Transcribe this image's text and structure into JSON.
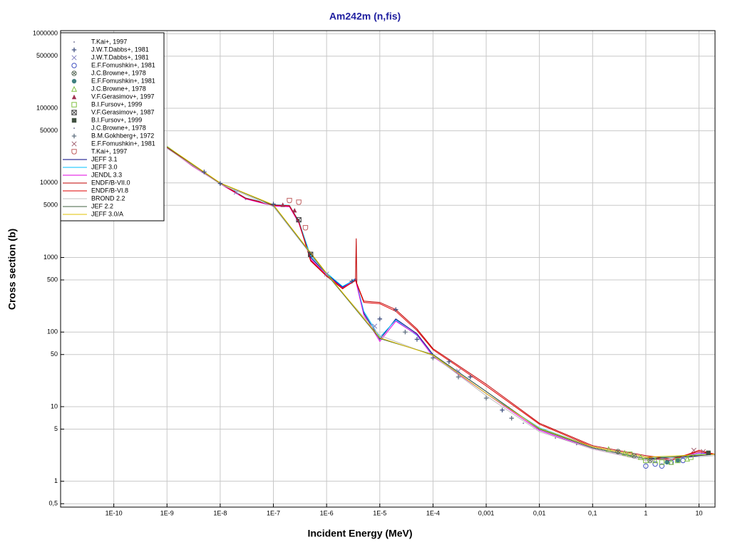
{
  "chart_data": {
    "type": "scatter",
    "title": "Am242m (n,fis)",
    "x_label": "Incident Energy (MeV)",
    "y_label": "Cross section (b)",
    "log_x": true,
    "log_y": true,
    "grid": true,
    "legend": "upper left",
    "xlim": [
      1e-11,
      20
    ],
    "ylim": [
      0.45,
      1100000
    ],
    "xticks": [
      {
        "value": 1e-10,
        "label": "1E-10"
      },
      {
        "value": 1e-09,
        "label": "1E-9"
      },
      {
        "value": 1e-08,
        "label": "1E-8"
      },
      {
        "value": 1e-07,
        "label": "1E-7"
      },
      {
        "value": 1e-06,
        "label": "1E-6"
      },
      {
        "value": 1e-05,
        "label": "1E-5"
      },
      {
        "value": 0.0001,
        "label": "1E-4"
      },
      {
        "value": 0.001,
        "label": "0,001"
      },
      {
        "value": 0.01,
        "label": "0,01"
      },
      {
        "value": 0.1,
        "label": "0,1"
      },
      1,
      10
    ],
    "yticks": [
      1000000,
      500000,
      100000,
      50000,
      10000,
      5000,
      1000,
      500,
      100,
      50,
      10,
      5,
      1,
      {
        "value": 0.5,
        "label": "0,5"
      }
    ],
    "series": [
      {
        "name": "T.Kai+, 1997",
        "marker": "dot",
        "color": "#8080a0",
        "x": [
          1e-08,
          3e-08,
          1e-07
        ],
        "values": [
          9500,
          6000,
          4900
        ]
      },
      {
        "name": "J.W.T.Dabbs+, 1981",
        "marker": "plus",
        "color": "#405080",
        "x": [
          5e-09,
          1e-08,
          1e-07,
          3e-06,
          1e-05,
          2e-05,
          5e-05,
          0.0002,
          0.0005,
          0.002
        ],
        "values": [
          14000,
          9800,
          5200,
          480,
          150,
          200,
          80,
          40,
          25,
          9
        ]
      },
      {
        "name": "J.W.T.Dabbs+, 1981",
        "marker": "cross",
        "color": "#8080c0",
        "x": [
          2e-08,
          1e-06,
          8e-06,
          0.0003
        ],
        "values": [
          7500,
          600,
          120,
          30
        ]
      },
      {
        "name": "E.F.Fomushkin+, 1981",
        "marker": "circle",
        "color": "#4050c0",
        "x": [
          1,
          1.5,
          2,
          3,
          5
        ],
        "values": [
          1.6,
          1.7,
          1.6,
          1.8,
          1.9
        ]
      },
      {
        "name": "J.C.Browne+, 1978",
        "marker": "circle-x",
        "color": "#607060",
        "x": [
          0.3,
          0.6,
          1.2
        ],
        "values": [
          2.5,
          2.2,
          1.9
        ]
      },
      {
        "name": "E.F.Fomushkin+, 1981",
        "marker": "hexagon",
        "color": "#408080",
        "x": [
          2.5,
          4
        ],
        "values": [
          1.8,
          1.9
        ]
      },
      {
        "name": "J.C.Browne+, 1978",
        "marker": "triangle",
        "color": "#80c040",
        "x": [
          0.2,
          0.4,
          0.8,
          1.5,
          3,
          6
        ],
        "values": [
          2.7,
          2.4,
          2.1,
          1.9,
          1.8,
          2.0
        ]
      },
      {
        "name": "V.F.Gerasimov+, 1997",
        "marker": "triangle-filled",
        "color": "#a03050",
        "x": [
          1.5e-07,
          2.5e-07
        ],
        "values": [
          5100,
          4300
        ]
      },
      {
        "name": "B.I.Fursov+, 1999",
        "marker": "square",
        "color": "#80c040",
        "x": [
          0.5,
          1,
          2,
          4,
          7
        ],
        "values": [
          2.3,
          1.9,
          1.8,
          1.9,
          2.1
        ]
      },
      {
        "name": "V.F.Gerasimov+, 1987",
        "marker": "square-x",
        "color": "#404040",
        "x": [
          3e-07,
          5e-07
        ],
        "values": [
          3200,
          1100
        ]
      },
      {
        "name": "B.I.Fursov+, 1999",
        "marker": "square-filled",
        "color": "#405040",
        "x": [
          15
        ],
        "values": [
          2.4
        ]
      },
      {
        "name": "J.C.Browne+, 1978",
        "marker": "dot",
        "color": "#8080a0",
        "x": [
          0.005,
          0.02,
          0.05
        ],
        "values": [
          6,
          3.8,
          3.1
        ]
      },
      {
        "name": "B.M.Gokhberg+, 1972",
        "marker": "plus",
        "color": "#607080",
        "x": [
          3e-05,
          0.0001,
          0.0003,
          0.001,
          0.003
        ],
        "values": [
          100,
          45,
          25,
          13,
          7
        ]
      },
      {
        "name": "E.F.Fomushkin+, 1981",
        "marker": "cross",
        "color": "#a06070",
        "x": [
          8,
          12
        ],
        "values": [
          2.6,
          2.5
        ]
      },
      {
        "name": "T.Kai+, 1997",
        "marker": "shield",
        "color": "#c06060",
        "x": [
          2e-07,
          3e-07,
          4e-07
        ],
        "values": [
          5800,
          5500,
          2500
        ]
      }
    ],
    "lines": [
      {
        "name": "JEFF 3.1",
        "color": "#000080",
        "x": [
          1e-09,
          3e-09,
          1e-08,
          3e-08,
          1e-07,
          2e-07,
          3e-07,
          5e-07,
          1e-06,
          2e-06,
          3.5e-06,
          5e-06,
          1e-05,
          2e-05,
          5e-05,
          0.0001,
          0.001,
          0.01,
          0.1,
          1,
          3,
          10,
          20
        ],
        "values": [
          30000,
          17000,
          9800,
          6200,
          5000,
          4900,
          3000,
          1000,
          600,
          400,
          520,
          180,
          80,
          150,
          95,
          50,
          16,
          5,
          2.8,
          2.0,
          2.0,
          2.2,
          2.3
        ]
      },
      {
        "name": "JEFF 3.0",
        "color": "#00c0ff",
        "x": [
          1e-09,
          3e-09,
          1e-08,
          3e-08,
          1e-07,
          2e-07,
          3e-07,
          5e-07,
          1e-06,
          2e-06,
          3.5e-06,
          5e-06,
          1e-05,
          2e-05,
          5e-05,
          0.0001,
          0.001,
          0.01,
          0.1,
          1,
          3,
          10,
          20
        ],
        "values": [
          31000,
          17500,
          10000,
          6300,
          5100,
          5000,
          3100,
          1050,
          620,
          410,
          510,
          190,
          85,
          145,
          90,
          48,
          15,
          5.2,
          2.9,
          2.1,
          2.1,
          2.3,
          2.3
        ]
      },
      {
        "name": "JENDL 3.3",
        "color": "#e000e0",
        "x": [
          1e-09,
          3e-09,
          1e-08,
          3e-08,
          1e-07,
          2e-07,
          3e-07,
          5e-07,
          1e-06,
          2e-06,
          3.5e-06,
          5e-06,
          1e-05,
          2e-05,
          5e-05,
          0.0001,
          0.001,
          0.01,
          0.1,
          1,
          3,
          10,
          20
        ],
        "values": [
          29500,
          16800,
          9700,
          6100,
          4900,
          4800,
          2900,
          950,
          580,
          390,
          500,
          170,
          75,
          140,
          92,
          47,
          15,
          4.8,
          2.7,
          1.9,
          2.0,
          2.4,
          2.3
        ]
      },
      {
        "name": "ENDF/B-VII.0",
        "color": "#c00000",
        "x": [
          1e-09,
          3e-09,
          1e-08,
          3e-08,
          1e-07,
          2e-07,
          3e-07,
          5e-07,
          1e-06,
          2e-06,
          3.5e-06,
          3.6e-06,
          3.7e-06,
          5e-06,
          1e-05,
          2e-05,
          5e-05,
          0.0001,
          0.001,
          0.01,
          0.1,
          1,
          3,
          10,
          20
        ],
        "values": [
          30000,
          17000,
          9800,
          6200,
          5000,
          4900,
          3000,
          900,
          560,
          380,
          500,
          1800,
          450,
          260,
          250,
          200,
          110,
          60,
          20,
          6,
          3.0,
          2.2,
          2.0,
          2.5,
          2.3
        ]
      },
      {
        "name": "ENDF/B-VI.8",
        "color": "#e00000",
        "x": [
          1e-09,
          3e-09,
          1e-08,
          3e-08,
          1e-07,
          2e-07,
          3e-07,
          5e-07,
          1e-06,
          2e-06,
          3.5e-06,
          5e-06,
          1e-05,
          2e-05,
          5e-05,
          0.0001,
          0.001,
          0.01,
          0.1,
          1,
          3,
          10,
          20
        ],
        "values": [
          30500,
          17200,
          9900,
          6250,
          5050,
          4950,
          3050,
          920,
          570,
          385,
          490,
          250,
          240,
          190,
          105,
          58,
          19,
          5.8,
          2.9,
          2.1,
          1.9,
          2.6,
          2.3
        ]
      },
      {
        "name": "BROND 2.2",
        "color": "#c0c0c0",
        "x": [
          1e-09,
          1e-08,
          1e-07,
          1e-06,
          1e-05,
          0.0001,
          0.001,
          0.01,
          0.1,
          1,
          20
        ],
        "values": [
          29000,
          9600,
          4800,
          590,
          90,
          48,
          14,
          4.6,
          2.7,
          1.9,
          2.2
        ]
      },
      {
        "name": "JEF 2.2",
        "color": "#406040",
        "x": [
          1e-09,
          1e-08,
          1e-07,
          1e-06,
          1e-05,
          0.0001,
          0.001,
          0.01,
          0.1,
          1,
          20
        ],
        "values": [
          30200,
          9900,
          5000,
          600,
          82,
          50,
          16,
          5,
          2.8,
          2.0,
          2.3
        ]
      },
      {
        "name": "JEFF 3.0/A",
        "color": "#e0c000",
        "x": [
          1e-09,
          1e-08,
          1e-07,
          1e-06,
          1e-05,
          0.0001,
          0.001,
          0.01,
          0.1,
          1,
          20
        ],
        "values": [
          30800,
          10000,
          5100,
          615,
          84,
          49,
          15,
          5.1,
          2.9,
          2.1,
          2.3
        ]
      }
    ]
  }
}
